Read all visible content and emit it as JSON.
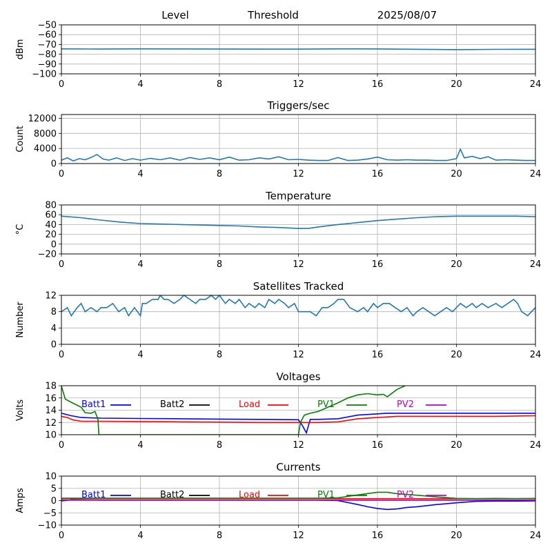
{
  "header": {
    "level": "Level",
    "threshold": "Threshold",
    "date": "2025/08/07"
  },
  "colors": {
    "series": "#1f77b4",
    "grid": "#b0b0b0",
    "batt1": "#0000ff",
    "batt2": "#000000",
    "load": "#ff0000",
    "pv1": "#008000",
    "pv2": "#bf00bf"
  },
  "chart_data": [
    {
      "type": "line",
      "title": "",
      "ylabel": "dBm",
      "xlim": [
        0,
        24
      ],
      "ylim": [
        -100,
        -50
      ],
      "xticks": [
        "0",
        "4",
        "8",
        "12",
        "16",
        "20",
        "24"
      ],
      "yticks": [
        "−50",
        "−60",
        "−70",
        "−80",
        "−90",
        "−100"
      ],
      "grid": true,
      "series": [
        {
          "x": [
            0,
            2,
            4,
            6,
            8,
            10,
            12,
            14,
            16,
            18,
            20,
            22,
            24
          ],
          "y": [
            -74.5,
            -74.7,
            -74.5,
            -74.6,
            -74.7,
            -74.8,
            -74.8,
            -74.5,
            -74.6,
            -74.9,
            -75.3,
            -75,
            -74.9
          ],
          "color": "#1f77b4"
        }
      ]
    },
    {
      "type": "line",
      "title": "Triggers/sec",
      "ylabel": "Count",
      "xlim": [
        0,
        24
      ],
      "ylim": [
        0,
        13000
      ],
      "xticks": [
        "0",
        "4",
        "8",
        "12",
        "16",
        "20",
        "24"
      ],
      "yticks": [
        "0",
        "4000",
        "8000",
        "12000"
      ],
      "grid": true,
      "series": [
        {
          "x": [
            0,
            0.3,
            0.6,
            0.9,
            1.2,
            1.5,
            1.8,
            2.1,
            2.4,
            2.8,
            3.2,
            3.6,
            4,
            4.5,
            5,
            5.5,
            6,
            6.5,
            7,
            7.5,
            8,
            8.5,
            9,
            9.5,
            10,
            10.5,
            11,
            11.5,
            12,
            12.5,
            13,
            13.5,
            14,
            14.5,
            15,
            15.5,
            16,
            16.5,
            17,
            17.5,
            18,
            18.5,
            19,
            19.5,
            20,
            20.2,
            20.4,
            20.8,
            21.2,
            21.6,
            22,
            22.5,
            23,
            23.5,
            24
          ],
          "y": [
            900,
            1500,
            700,
            1300,
            1000,
            1600,
            2400,
            1200,
            900,
            1500,
            800,
            1300,
            900,
            1400,
            1000,
            1500,
            900,
            1600,
            1100,
            1500,
            1000,
            1700,
            900,
            1000,
            1500,
            1200,
            1800,
            1000,
            1100,
            900,
            800,
            800,
            1600,
            800,
            900,
            1200,
            1700,
            1000,
            900,
            1000,
            900,
            900,
            800,
            800,
            1300,
            3800,
            1500,
            1900,
            1300,
            1800,
            900,
            1000,
            900,
            800,
            800
          ],
          "color": "#1f77b4"
        }
      ]
    },
    {
      "type": "line",
      "title": "Temperature",
      "ylabel": "°C",
      "xlim": [
        0,
        24
      ],
      "ylim": [
        -20,
        80
      ],
      "xticks": [
        "0",
        "4",
        "8",
        "12",
        "16",
        "20",
        "24"
      ],
      "yticks": [
        "80",
        "60",
        "40",
        "20",
        "0",
        "−20"
      ],
      "grid": true,
      "series": [
        {
          "x": [
            0,
            1,
            2,
            3,
            4,
            5,
            6,
            7,
            8,
            9,
            10,
            11,
            12,
            12.5,
            13,
            14,
            15,
            16,
            17,
            18,
            19,
            20,
            21,
            22,
            23,
            24
          ],
          "y": [
            57,
            54,
            49,
            45,
            42,
            41,
            40,
            39,
            38,
            37,
            35,
            34,
            32,
            32,
            35,
            40,
            44,
            48,
            51,
            54,
            56,
            57,
            57,
            57,
            57,
            56
          ],
          "color": "#1f77b4"
        }
      ]
    },
    {
      "type": "line",
      "title": "Satellites Tracked",
      "ylabel": "Number",
      "xlim": [
        0,
        24
      ],
      "ylim": [
        0,
        12
      ],
      "xticks": [
        "0",
        "4",
        "8",
        "12",
        "16",
        "20",
        "24"
      ],
      "yticks": [
        "0",
        "4",
        "8",
        "12"
      ],
      "grid": true,
      "series": [
        {
          "x": [
            0,
            0.3,
            0.5,
            0.8,
            1,
            1.2,
            1.5,
            1.8,
            2,
            2.3,
            2.6,
            2.9,
            3.2,
            3.4,
            3.7,
            4,
            4.1,
            4.3,
            4.6,
            4.9,
            5,
            5.2,
            5.4,
            5.7,
            6,
            6.2,
            6.5,
            6.8,
            7,
            7.3,
            7.6,
            7.8,
            8,
            8.3,
            8.5,
            8.8,
            9,
            9.3,
            9.5,
            9.8,
            10,
            10.3,
            10.5,
            10.8,
            11,
            11.3,
            11.5,
            11.8,
            12,
            12.3,
            12.6,
            12.9,
            13.2,
            13.5,
            13.8,
            14,
            14.3,
            14.6,
            15,
            15.3,
            15.5,
            15.8,
            16,
            16.3,
            16.6,
            16.9,
            17.2,
            17.5,
            17.8,
            18,
            18.3,
            18.6,
            18.9,
            19.2,
            19.5,
            19.8,
            20,
            20.2,
            20.5,
            20.8,
            21,
            21.3,
            21.6,
            22,
            22.3,
            22.6,
            22.9,
            23.1,
            23.3,
            23.6,
            24
          ],
          "y": [
            8,
            9,
            7,
            9,
            10,
            8,
            9,
            8,
            9,
            9,
            10,
            8,
            9,
            7,
            9,
            7,
            10,
            10,
            11,
            11,
            12,
            11,
            11,
            10,
            11,
            12,
            11,
            10,
            11,
            11,
            12,
            11,
            12,
            10,
            11,
            10,
            11,
            9,
            10,
            9,
            10,
            9,
            11,
            10,
            11,
            10,
            9,
            10,
            8,
            8,
            8,
            7,
            9,
            9,
            10,
            11,
            11,
            9,
            8,
            9,
            8,
            10,
            9,
            10,
            10,
            9,
            8,
            9,
            7,
            8,
            9,
            8,
            7,
            8,
            9,
            8,
            9,
            10,
            9,
            10,
            9,
            10,
            9,
            10,
            9,
            10,
            11,
            10,
            8,
            7,
            9
          ],
          "color": "#1f77b4"
        }
      ]
    },
    {
      "type": "line",
      "title": "Voltages",
      "ylabel": "Volts",
      "xlim": [
        0,
        24
      ],
      "ylim": [
        10,
        18
      ],
      "xticks": [
        "0",
        "4",
        "8",
        "12",
        "16",
        "20",
        "24"
      ],
      "yticks": [
        "10",
        "12",
        "14",
        "16",
        "18"
      ],
      "grid": true,
      "legend": [
        "Batt1",
        "Batt2",
        "Load",
        "PV1",
        "PV2"
      ],
      "series": [
        {
          "name": "Batt1",
          "color": "#0000ff",
          "x": [
            0,
            0.5,
            1,
            2,
            4,
            6,
            8,
            10,
            12,
            12.2,
            12.4,
            12.6,
            13,
            14,
            15,
            16,
            16.5,
            17,
            18,
            20,
            22,
            24
          ],
          "y": [
            13.5,
            13.1,
            12.8,
            12.7,
            12.65,
            12.6,
            12.55,
            12.5,
            12.45,
            11.5,
            10.3,
            12.5,
            12.5,
            12.6,
            13.2,
            13.4,
            13.5,
            13.5,
            13.5,
            13.5,
            13.5,
            13.5
          ]
        },
        {
          "name": "Load",
          "color": "#ff0000",
          "x": [
            0,
            0.3,
            0.6,
            1,
            2,
            4,
            6,
            8,
            10,
            12,
            13,
            14,
            15,
            16,
            17,
            18,
            20,
            22,
            24
          ],
          "y": [
            13,
            12.8,
            12.4,
            12.2,
            12.2,
            12.15,
            12.1,
            12.05,
            12,
            12,
            12,
            12.1,
            12.6,
            12.8,
            13,
            13,
            13,
            13,
            13.1
          ]
        },
        {
          "name": "PV1",
          "color": "#008000",
          "x": [
            0,
            0.2,
            0.5,
            1,
            1.2,
            1.5,
            1.7,
            1.85,
            1.9,
            12,
            12.1,
            12.3,
            12.6,
            13,
            13.5,
            14,
            14.5,
            15,
            15.5,
            16,
            16.3,
            16.5,
            17,
            17.4
          ],
          "y": [
            17.9,
            15.8,
            15.3,
            14.5,
            13.6,
            13.5,
            13.8,
            12.5,
            10,
            10,
            12,
            13.2,
            13.5,
            13.8,
            14.5,
            15.2,
            16,
            16.5,
            16.7,
            16.5,
            16.6,
            16.2,
            17.4,
            18
          ]
        }
      ]
    },
    {
      "type": "line",
      "title": "Currents",
      "ylabel": "Amps",
      "xlim": [
        0,
        24
      ],
      "ylim": [
        -10,
        10
      ],
      "xticks": [
        "0",
        "4",
        "8",
        "12",
        "16",
        "20",
        "24"
      ],
      "yticks": [
        "−10",
        "−5",
        "0",
        "5",
        "10"
      ],
      "grid": true,
      "legend": [
        "Batt1",
        "Batt2",
        "Load",
        "PV1",
        "PV2"
      ],
      "series": [
        {
          "name": "Batt1",
          "color": "#0000ff",
          "x": [
            0,
            0.5,
            2,
            4,
            6,
            8,
            10,
            12,
            13,
            14,
            14.5,
            15,
            15.5,
            16,
            16.5,
            17,
            17.5,
            18,
            19,
            20,
            21,
            22,
            23,
            24
          ],
          "y": [
            -0.1,
            0.3,
            0.2,
            0.2,
            0.2,
            0.2,
            0.2,
            0.2,
            0.2,
            0,
            -0.8,
            -1.6,
            -2.5,
            -3.2,
            -3.6,
            -3.4,
            -2.8,
            -2.5,
            -1.6,
            -0.9,
            -0.3,
            -0.2,
            -0.2,
            -0.1
          ]
        },
        {
          "name": "Load",
          "color": "#ff0000",
          "x": [
            0,
            4,
            8,
            12,
            16,
            20,
            24
          ],
          "y": [
            0.8,
            0.8,
            0.8,
            0.8,
            0.8,
            0.8,
            0.8
          ]
        },
        {
          "name": "PV1",
          "color": "#008000",
          "x": [
            0,
            4,
            8,
            12,
            13,
            14,
            15,
            16,
            16.5,
            17,
            18,
            19,
            20,
            21,
            22,
            23,
            24
          ],
          "y": [
            1,
            1,
            1,
            1,
            1,
            1.1,
            2.3,
            3.4,
            3.4,
            2.8,
            2.2,
            1.5,
            0.9,
            0.8,
            0.9,
            0.8,
            0.9
          ]
        },
        {
          "name": "PV2",
          "color": "#bf00bf",
          "x": [
            0,
            4,
            8,
            12,
            16,
            20,
            24
          ],
          "y": [
            0.2,
            0.2,
            0.2,
            0.2,
            0.2,
            0.2,
            0.2
          ]
        }
      ]
    }
  ]
}
